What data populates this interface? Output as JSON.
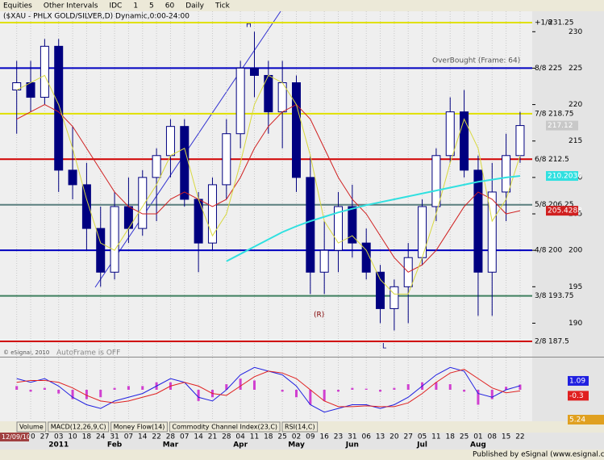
{
  "toolbar": {
    "items": [
      "Equities",
      "Other Intervals",
      "IDC",
      "1",
      "5",
      "60",
      "Daily",
      "Tick"
    ]
  },
  "tabs": [
    "Volume",
    "MACD(12,26,9,C)",
    "Money Flow(14)",
    "Commodity Channel Index(23,C)",
    "RSI(14,C)"
  ],
  "status": "Published by eSignal (www.esignal.com)",
  "chart_data": [
    {
      "type": "candlestick",
      "title": "($XAU - PHLX GOLD/SILVER,D) Dynamic,0:00-24:00",
      "start_date": "12/09/10",
      "categories": [
        null,
        "20",
        "27",
        "03",
        "10",
        "18",
        "24",
        "31",
        "07",
        "14",
        "22",
        "28",
        "07",
        "14",
        "21",
        "28",
        "04",
        "11",
        "18",
        "25",
        "02",
        "09",
        "16",
        "23",
        "31",
        "06",
        "13",
        "20",
        "27",
        "05",
        "11",
        "18",
        "25",
        "01",
        "08",
        "15",
        "22"
      ],
      "period_labels": [
        null,
        null,
        null,
        "2011",
        null,
        null,
        null,
        "Feb",
        null,
        null,
        null,
        "Mar",
        null,
        null,
        null,
        null,
        "Apr",
        null,
        null,
        null,
        "May",
        null,
        null,
        null,
        "Jun",
        null,
        null,
        null,
        null,
        "Jul",
        null,
        null,
        null,
        "Aug",
        null,
        null,
        null
      ],
      "open": [
        222,
        223,
        221,
        228,
        211,
        209,
        203,
        197,
        206,
        203,
        210,
        213,
        217,
        207,
        201,
        209,
        216,
        225,
        224,
        219,
        223,
        210,
        197,
        200,
        206,
        201,
        197,
        192,
        195,
        199,
        206,
        213,
        219,
        211,
        197,
        208,
        213
      ],
      "high": [
        226,
        226,
        229,
        229,
        217,
        212,
        206,
        208,
        210,
        211,
        214,
        218,
        218,
        208,
        210,
        218,
        226,
        230,
        226,
        226,
        224,
        213,
        204,
        208,
        209,
        203,
        198,
        196,
        201,
        207,
        214,
        221,
        222,
        213,
        212,
        216,
        219
      ],
      "low": [
        216,
        219,
        220,
        208,
        207,
        200,
        195,
        196,
        201,
        202,
        204,
        210,
        206,
        197,
        200,
        207,
        214,
        221,
        216,
        214,
        208,
        194,
        194,
        197,
        199,
        196,
        190,
        189,
        190,
        198,
        204,
        212,
        210,
        191,
        191,
        204,
        212
      ],
      "close": [
        223,
        221,
        228,
        211,
        209,
        203,
        197,
        206,
        203,
        210,
        213,
        217,
        207,
        201,
        209,
        216,
        225,
        224,
        219,
        223,
        210,
        197,
        200,
        206,
        201,
        197,
        192,
        195,
        199,
        206,
        213,
        219,
        211,
        197,
        208,
        213,
        217.12
      ],
      "up_color": "#ffffff",
      "down_color": "#000080",
      "edge_color": "#000080",
      "overlays": [
        {
          "color": "#d02020",
          "values": [
            218,
            219,
            220,
            219,
            217,
            214,
            211,
            208,
            206,
            205,
            205,
            207,
            208,
            207,
            206,
            207,
            210,
            214,
            217,
            219,
            220,
            218,
            214,
            210,
            207,
            205,
            202,
            199,
            197,
            198,
            200,
            203,
            206,
            208,
            207,
            205,
            205.4288
          ]
        },
        {
          "color": "#d8d840",
          "values": [
            222,
            223,
            224,
            220,
            214,
            207,
            201,
            200,
            203,
            206,
            209,
            213,
            214,
            207,
            202,
            205,
            212,
            220,
            224,
            223,
            220,
            213,
            204,
            201,
            202,
            200,
            196,
            194,
            194,
            199,
            205,
            212,
            218,
            214,
            204,
            207,
            213
          ]
        },
        {
          "color": "#30e0e0",
          "values": [
            null,
            null,
            null,
            null,
            null,
            null,
            null,
            null,
            null,
            null,
            null,
            null,
            null,
            null,
            null,
            198.5,
            199.5,
            200.5,
            201.5,
            202.5,
            203.3,
            204,
            204.6,
            205.2,
            205.7,
            206.2,
            206.6,
            207,
            207.4,
            207.8,
            208.2,
            208.6,
            209,
            209.4,
            209.7,
            210,
            210.2036
          ]
        }
      ],
      "ylim": [
        185.4,
        232.8
      ],
      "yticks": [
        190,
        195,
        200,
        205,
        210,
        215,
        220,
        225,
        230
      ],
      "grid": true,
      "levels": [
        {
          "label": "+1/8",
          "value": 231.25,
          "color": "#e0e000"
        },
        {
          "label": "8/8",
          "value": 225,
          "color": "#0000c0"
        },
        {
          "label": "7/8",
          "value": 218.75,
          "color": "#e0e000"
        },
        {
          "label": "6/8",
          "value": 212.5,
          "color": "#d00000"
        },
        {
          "label": "5/8",
          "value": 206.25,
          "color": "#5a7f7f"
        },
        {
          "label": "4/8",
          "value": 200,
          "color": "#0000c0"
        },
        {
          "label": "3/8",
          "value": 193.75,
          "color": "#3f7f5f"
        },
        {
          "label": "2/8",
          "value": 187.5,
          "color": "#d00000"
        }
      ],
      "annotations": [
        "OverBought (Frame: 64)",
        "AutoFrame is OFF",
        "© eSignal, 2010",
        "H",
        "L",
        "(R)"
      ]
    },
    {
      "type": "macd",
      "ylim": [
        -8,
        8
      ],
      "series": [
        {
          "color": "#2020e0",
          "values": [
            3,
            2,
            3,
            1,
            -2,
            -4,
            -5,
            -3,
            -2,
            -1,
            1,
            3,
            2,
            -2,
            -3,
            0,
            4,
            6,
            5,
            4,
            1,
            -4,
            -6,
            -5,
            -4,
            -4,
            -5,
            -4,
            -2,
            1,
            4,
            6,
            5,
            -1,
            -2,
            0,
            1.09
          ]
        },
        {
          "color": "#e02020",
          "values": [
            2,
            2.5,
            2.5,
            2,
            0.5,
            -1.5,
            -3,
            -3.5,
            -3,
            -2,
            -1,
            1,
            2,
            1,
            -1,
            -1.5,
            1,
            3.5,
            5,
            4.5,
            3,
            0,
            -3,
            -4.5,
            -4.5,
            -4.3,
            -4.5,
            -4.5,
            -3.5,
            -1,
            2,
            4.5,
            5.5,
            3,
            0.5,
            -0.8,
            -0.3
          ]
        }
      ],
      "histogram": {
        "color": "#d040d0",
        "values": [
          1,
          -0.5,
          0.5,
          -1,
          -2.5,
          -2.5,
          -2,
          0.5,
          1,
          1,
          2,
          2,
          0,
          -3,
          -2,
          1.5,
          3,
          2.5,
          0,
          -0.5,
          -2,
          -4,
          -3,
          -0.5,
          0.5,
          0.3,
          -0.5,
          0.5,
          1.5,
          2,
          2,
          1.5,
          -0.5,
          -4,
          -2.5,
          0.8,
          1.39
        ]
      },
      "readout": 5.24
    }
  ]
}
